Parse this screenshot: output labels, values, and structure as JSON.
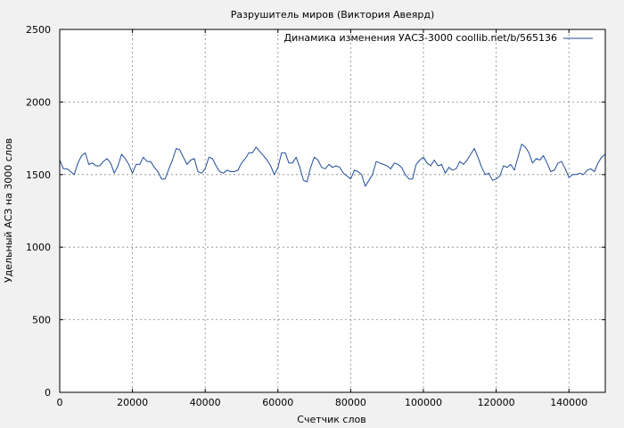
{
  "chart_data": {
    "type": "line",
    "title": "Разрушитель миров (Виктория Авеярд)",
    "xlabel": "Счетчик слов",
    "ylabel": "Удельный АСЗ на 3000 слов",
    "xlim": [
      0,
      150000
    ],
    "ylim": [
      0,
      2500
    ],
    "xticks": [
      "0",
      "20000",
      "40000",
      "60000",
      "80000",
      "100000",
      "120000",
      "140000"
    ],
    "yticks": [
      "0",
      "500",
      "1000",
      "1500",
      "2000",
      "2500"
    ],
    "grid": true,
    "legend_position": "top-right",
    "series": [
      {
        "name": "Динамика изменения УАСЗ-3000 coollib.net/b/565136",
        "color": "#1f4e9a",
        "x": [
          0,
          1000,
          2000,
          3000,
          4000,
          5000,
          6000,
          7000,
          8000,
          9000,
          10000,
          11000,
          12000,
          13000,
          14000,
          15000,
          16000,
          17000,
          18000,
          19000,
          20000,
          21000,
          22000,
          23000,
          24000,
          25000,
          26000,
          27000,
          28000,
          29000,
          30000,
          31000,
          32000,
          33000,
          34000,
          35000,
          36000,
          37000,
          38000,
          39000,
          40000,
          41000,
          42000,
          43000,
          44000,
          45000,
          46000,
          47000,
          48000,
          49000,
          50000,
          51000,
          52000,
          53000,
          54000,
          55000,
          56000,
          57000,
          58000,
          59000,
          60000,
          61000,
          62000,
          63000,
          64000,
          65000,
          66000,
          67000,
          68000,
          69000,
          70000,
          71000,
          72000,
          73000,
          74000,
          75000,
          76000,
          77000,
          78000,
          79000,
          80000,
          81000,
          82000,
          83000,
          84000,
          85000,
          86000,
          87000,
          88000,
          89000,
          90000,
          91000,
          92000,
          93000,
          94000,
          95000,
          96000,
          97000,
          98000,
          99000,
          100000,
          101000,
          102000,
          103000,
          104000,
          105000,
          106000,
          107000,
          108000,
          109000,
          110000,
          111000,
          112000,
          113000,
          114000,
          115000,
          116000,
          117000,
          118000,
          119000,
          120000,
          121000,
          122000,
          123000,
          124000,
          125000,
          126000,
          127000,
          128000,
          129000,
          130000,
          131000,
          132000,
          133000,
          134000,
          135000,
          136000,
          137000,
          138000,
          139000,
          140000,
          141000,
          142000,
          143000,
          144000,
          145000,
          146000,
          147000,
          148000,
          149000,
          150000
        ],
        "y": [
          1600,
          1540,
          1540,
          1520,
          1500,
          1580,
          1630,
          1650,
          1570,
          1580,
          1560,
          1560,
          1590,
          1610,
          1580,
          1510,
          1560,
          1640,
          1610,
          1570,
          1510,
          1570,
          1570,
          1620,
          1590,
          1590,
          1550,
          1520,
          1470,
          1470,
          1540,
          1600,
          1680,
          1670,
          1620,
          1570,
          1600,
          1610,
          1520,
          1510,
          1540,
          1620,
          1610,
          1560,
          1520,
          1510,
          1530,
          1520,
          1520,
          1530,
          1580,
          1610,
          1650,
          1650,
          1690,
          1660,
          1630,
          1600,
          1560,
          1500,
          1550,
          1650,
          1650,
          1580,
          1580,
          1620,
          1550,
          1460,
          1450,
          1550,
          1620,
          1600,
          1550,
          1540,
          1570,
          1550,
          1560,
          1550,
          1510,
          1490,
          1470,
          1530,
          1520,
          1500,
          1420,
          1460,
          1500,
          1590,
          1580,
          1570,
          1560,
          1540,
          1580,
          1570,
          1550,
          1500,
          1470,
          1470,
          1570,
          1600,
          1620,
          1580,
          1560,
          1600,
          1560,
          1570,
          1510,
          1550,
          1530,
          1540,
          1590,
          1570,
          1600,
          1640,
          1680,
          1620,
          1550,
          1500,
          1510,
          1460,
          1470,
          1490,
          1560,
          1550,
          1570,
          1530,
          1620,
          1710,
          1690,
          1650,
          1580,
          1610,
          1600,
          1630,
          1580,
          1520,
          1530,
          1580,
          1590,
          1540,
          1480,
          1500,
          1500,
          1510,
          1500,
          1530,
          1540,
          1520,
          1580,
          1620,
          1640
        ]
      }
    ]
  }
}
